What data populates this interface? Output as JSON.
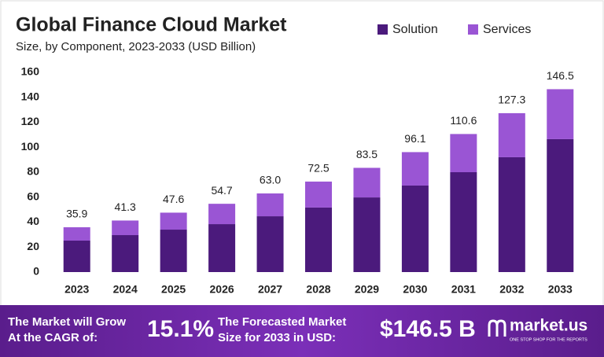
{
  "chart_data": {
    "type": "stacked-bar",
    "title": "Global Finance Cloud Market",
    "subtitle": "Size, by Component, 2023-2033 (USD Billion)",
    "categories": [
      "2023",
      "2024",
      "2025",
      "2026",
      "2027",
      "2028",
      "2029",
      "2030",
      "2031",
      "2032",
      "2033"
    ],
    "series": [
      {
        "name": "Solution",
        "color": "#4b1a7c",
        "values": [
          25.2,
          29.6,
          34.0,
          38.4,
          44.7,
          51.7,
          59.8,
          69.3,
          80.0,
          92.0,
          106.5
        ]
      },
      {
        "name": "Services",
        "color": "#9a55d4",
        "values": [
          10.7,
          11.7,
          13.6,
          16.3,
          18.3,
          20.8,
          23.7,
          26.8,
          30.6,
          35.3,
          40.0
        ]
      }
    ],
    "totals": [
      35.9,
      41.3,
      47.6,
      54.7,
      {
        "value": 63.0,
        "label": "63.0"
      },
      72.5,
      83.5,
      96.1,
      110.6,
      127.3,
      146.5
    ],
    "ylim": [
      0,
      160
    ],
    "yticks": [
      0,
      20,
      40,
      60,
      80,
      100,
      120,
      140,
      160
    ],
    "grid": false
  },
  "footer": {
    "cagr_text_1": "The Market will Grow",
    "cagr_text_2": "At the CAGR of:",
    "cagr": "15.1%",
    "forecast_text_1": "The Forecasted Market",
    "forecast_text_2": "Size for 2033 in USD:",
    "forecast": "$146.5 B",
    "brand": "market.us",
    "tagline": "ONE STOP SHOP FOR THE REPORTS"
  }
}
